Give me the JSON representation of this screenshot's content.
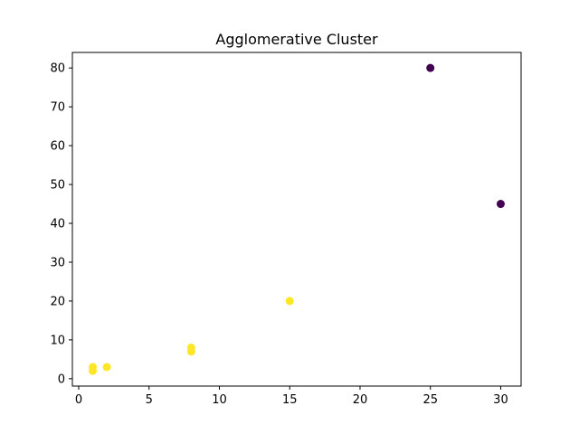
{
  "chart_data": {
    "type": "scatter",
    "title": "Agglomerative Cluster",
    "xlabel": "",
    "ylabel": "",
    "xlim": [
      -0.45,
      31.45
    ],
    "ylim": [
      -1.9,
      84.0
    ],
    "xticks": [
      0,
      5,
      10,
      15,
      20,
      25,
      30
    ],
    "yticks": [
      0,
      10,
      20,
      30,
      40,
      50,
      60,
      70,
      80
    ],
    "grid": false,
    "legend": "none",
    "cluster_colors": {
      "0": "#440154",
      "1": "#fde725"
    },
    "points": [
      {
        "x": 1,
        "y": 2,
        "cluster": 1
      },
      {
        "x": 1,
        "y": 3,
        "cluster": 1
      },
      {
        "x": 2,
        "y": 3,
        "cluster": 1
      },
      {
        "x": 8,
        "y": 7,
        "cluster": 1
      },
      {
        "x": 8,
        "y": 8,
        "cluster": 1
      },
      {
        "x": 15,
        "y": 20,
        "cluster": 1
      },
      {
        "x": 25,
        "y": 80,
        "cluster": 0
      },
      {
        "x": 30,
        "y": 45,
        "cluster": 0
      }
    ]
  }
}
